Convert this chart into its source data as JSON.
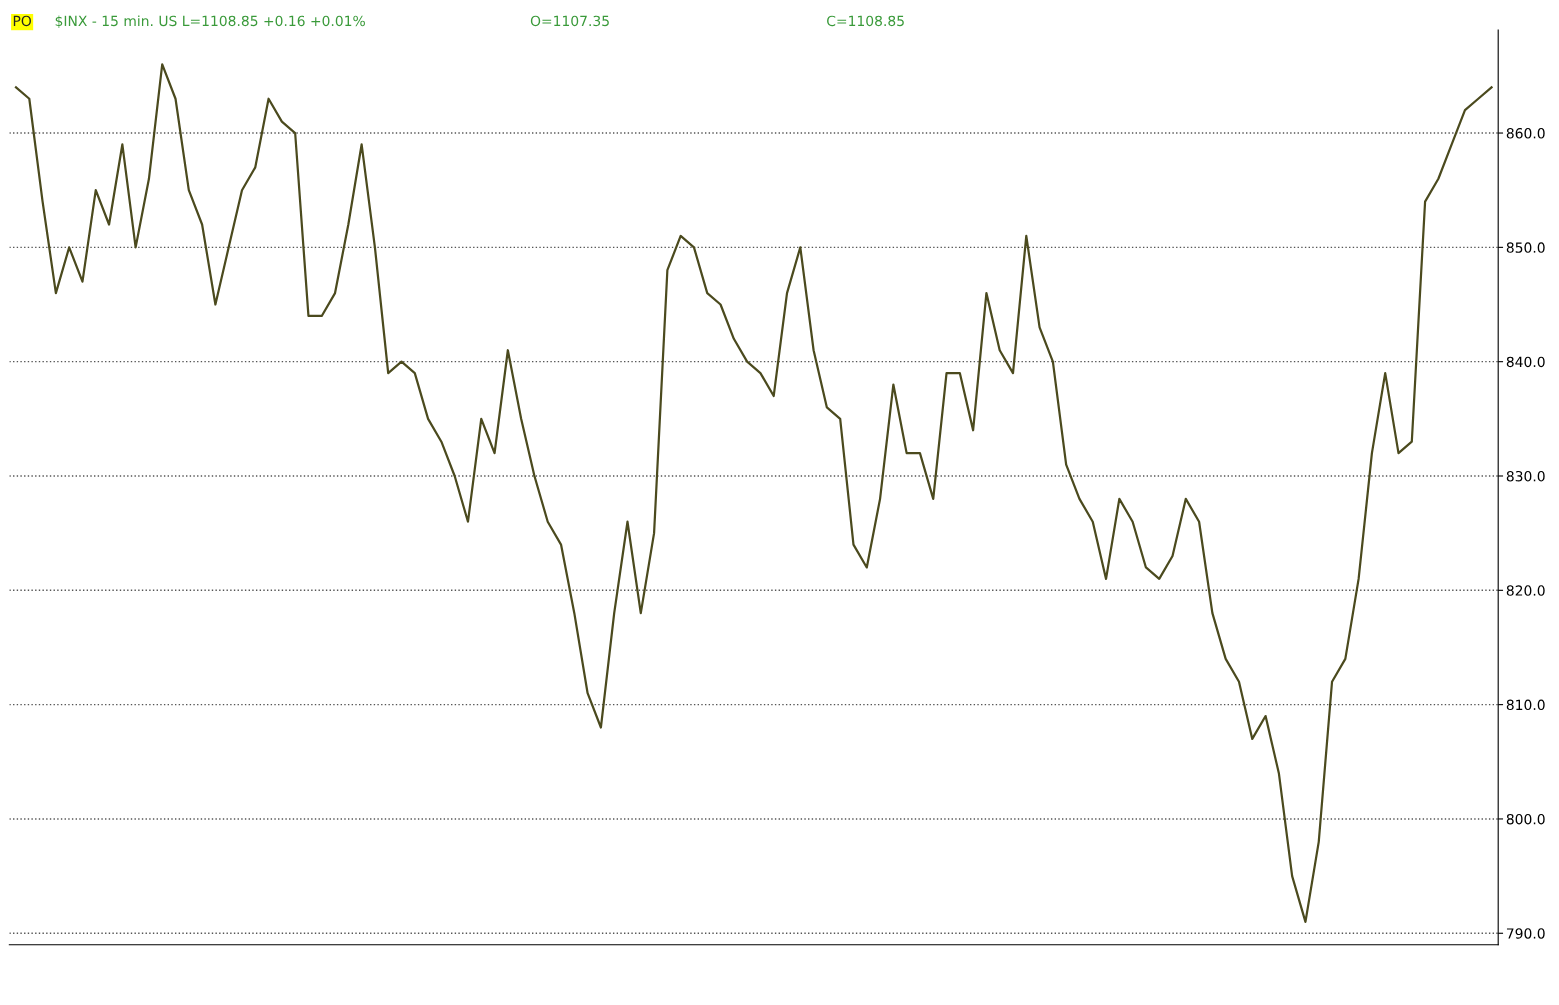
{
  "chart_data": {
    "type": "line",
    "title": "$INX - 15 min. US L=1108.85 +0.16 +0.01%",
    "annotations": [
      "PO",
      "O=1107.35",
      "C=1108.85"
    ],
    "categories": [
      null,
      null,
      null,
      null,
      null,
      null,
      null,
      null,
      null,
      null,
      null,
      null,
      null,
      null,
      null,
      null,
      null,
      null,
      null,
      null,
      null,
      null,
      null,
      null,
      null,
      null,
      null,
      null,
      null,
      null,
      null,
      null,
      null,
      null,
      null,
      null,
      null,
      null,
      null,
      null,
      null,
      null,
      null,
      null,
      null,
      null,
      null,
      null,
      null,
      null,
      null,
      null,
      null,
      null,
      null,
      null,
      null,
      null,
      null,
      null,
      null,
      null,
      null,
      null,
      null,
      null,
      null,
      null,
      null,
      null,
      null,
      null,
      null,
      null,
      null,
      null,
      null,
      null,
      null,
      null,
      null,
      null,
      null,
      null,
      null,
      null,
      null,
      null,
      null,
      null,
      null,
      null,
      null,
      null,
      null,
      null,
      null,
      null,
      null,
      null,
      null,
      null,
      null,
      null,
      null,
      null,
      null,
      null,
      null,
      null,
      null,
      null
    ],
    "series": [
      {
        "color": "#4b4a1e",
        "values": [
          864,
          863,
          854,
          846,
          850,
          847,
          855,
          852,
          859,
          850,
          856,
          866,
          863,
          855,
          852,
          845,
          850,
          855,
          857,
          863,
          861,
          860,
          844,
          844,
          846,
          852,
          859,
          850,
          839,
          840,
          839,
          835,
          833,
          830,
          826,
          835,
          832,
          841,
          835,
          830,
          826,
          824,
          818,
          811,
          808,
          818,
          826,
          818,
          825,
          848,
          851,
          850,
          846,
          845,
          842,
          840,
          839,
          837,
          846,
          850,
          841,
          836,
          835,
          824,
          822,
          828,
          838,
          832,
          832,
          828,
          839,
          839,
          834,
          846,
          841,
          839,
          851,
          843,
          840,
          831,
          828,
          826,
          821,
          828,
          826,
          822,
          821,
          823,
          828,
          826,
          818,
          814,
          812,
          807,
          809,
          804,
          795,
          791,
          798,
          812,
          814,
          821,
          832,
          839,
          832,
          833,
          854,
          856,
          859,
          862,
          863,
          864
        ]
      }
    ],
    "ylim": [
      789,
      869
    ],
    "yticks": [
      {
        "value": 860,
        "label": "860.0"
      },
      {
        "value": 850,
        "label": "850.0"
      },
      {
        "value": 840,
        "label": "840.0"
      },
      {
        "value": 830,
        "label": "830.0"
      },
      {
        "value": 820,
        "label": "820.0"
      },
      {
        "value": 810,
        "label": "810.0"
      },
      {
        "value": 800,
        "label": "800.0"
      },
      {
        "value": 790,
        "label": "790.0"
      }
    ],
    "grid": "y",
    "tick_labels": "y",
    "marker": "none",
    "line_style": "solid"
  }
}
